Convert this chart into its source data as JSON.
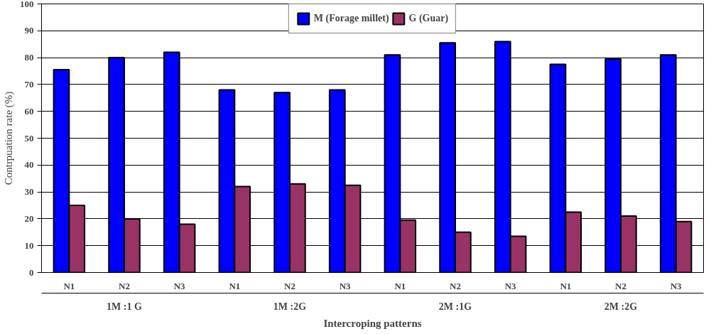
{
  "chart_data": {
    "type": "bar",
    "ylabel": "Contrpuation rate (%)",
    "xlabel": "Intercroping patterns",
    "categories": [
      "N1",
      "N2",
      "N3",
      "N1",
      "N2",
      "N3",
      "N1",
      "N2",
      "N3",
      "N1",
      "N2",
      "N3"
    ],
    "annotations": [
      "1M :1 G",
      "1M :2G",
      "2M :1G",
      "2M :2G"
    ],
    "series": [
      {
        "name": "M (Forage millet)",
        "color": "#0000ff",
        "values": [
          75.5,
          80,
          82,
          68,
          67,
          68,
          81,
          85.5,
          86,
          77.5,
          79.5,
          81
        ]
      },
      {
        "name": "G (Guar)",
        "color": "#993366",
        "values": [
          25,
          20,
          18,
          32,
          33,
          32.5,
          19.5,
          15,
          13.5,
          22.5,
          21,
          19
        ]
      }
    ],
    "ylim": [
      0,
      100
    ],
    "yticks": [
      0,
      10,
      20,
      30,
      40,
      50,
      60,
      70,
      80,
      90,
      100
    ],
    "grid": "y",
    "legend": "top"
  }
}
